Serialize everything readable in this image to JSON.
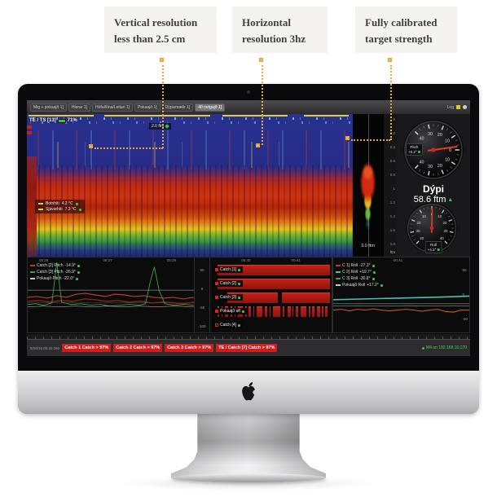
{
  "callouts": {
    "items": [
      {
        "text": "Vertical resolution less than 2.5 cm"
      },
      {
        "text": "Horizontal resolution 3hz"
      },
      {
        "text": "Fully calibrated target strength"
      }
    ]
  },
  "colors": {
    "accent_orange": "#e9a63c",
    "alert_red": "#cf1d1d",
    "ok_green": "#35c24a",
    "echo_blue": "#242a85"
  },
  "app": {
    "menu": {
      "tabs": [
        {
          "label": "Mig + pokaajð 1]"
        },
        {
          "label": "Hlerar 1]"
        },
        {
          "label": "Höfuðlína/Leitari 1]"
        },
        {
          "label": "Pokaajð 1]"
        },
        {
          "label": "Dýpismælir 1]"
        },
        {
          "label": "40 netgajð 1]",
          "active": true
        }
      ],
      "log_label": "Log"
    },
    "echogram": {
      "status_label": "TE / TS [13]",
      "battery_percent": "71%",
      "range_chip": "2.0 ftm",
      "temps": [
        {
          "label": "Botnhiti",
          "value": "4.2 °C"
        },
        {
          "label": "Sjávarhiti",
          "value": "7.3 °C"
        }
      ]
    },
    "strip": {
      "range_label": "3.0 ftm"
    },
    "scale": {
      "ticks": [
        "0",
        "0.2",
        "0.4",
        "0.6",
        "0.8",
        "1",
        "1.2",
        "1.4",
        "1.6",
        "1.8"
      ],
      "unit": "ftm"
    },
    "gauges": {
      "dial_numbers": [
        "40",
        "30",
        "20",
        "10",
        "0",
        "10",
        "20",
        "30",
        "40"
      ],
      "pitch": {
        "label": "Pitch",
        "value": "+0.2°",
        "rotation": 90,
        "needle_angle": 82
      },
      "roll": {
        "label": "Roll",
        "value": "+4.2°",
        "rotation": 0,
        "needle_angle": 1
      },
      "depth_label": "Dýpi",
      "depth_value": "58.6 ftm"
    },
    "bottom": {
      "left_chart": {
        "times": [
          "05:26",
          "05:27",
          "05:28"
        ],
        "legend": [
          {
            "label": "Catch [2] Pitch",
            "value": "-14.9°",
            "color": "#b3402e"
          },
          {
            "label": "Catch [3] Pitch",
            "value": "-26.9°",
            "color": "#3da23d"
          },
          {
            "label": "Pokaajð Pitch",
            "value": "-22.0°",
            "color": "#c9c9b8"
          }
        ],
        "y_ticks": [
          "50",
          "0",
          "-50",
          "-100"
        ],
        "series": {
          "red": "0,50 12,49 24,51 36,48 48,50 60,46 72,45 84,47 96,49 108,46 120,47 132,49 144,48 156,50 168,51 180,50 193,52 206,50",
          "darkred": "0,55 14,54 28,56 42,54 56,55 70,52 84,53 98,55 112,54 126,56 140,55 154,57 168,56 182,57 194,58 206,56",
          "green": "0,59 10,58 20,60 30,57 36,6 42,56 54,59 66,58 78,60 90,59 102,61 114,60 126,59 138,60 146,58 152,30 157,12 163,42 170,58 182,60 194,59 206,60",
          "gray": "0,62 20,61 40,62 60,61 80,62 100,61 120,62 140,61 160,62 180,61 206,62"
        }
      },
      "bars": {
        "times": [
          "00:40",
          "00:41"
        ],
        "rows": [
          {
            "label": "Catch [1]",
            "segments": [
              [
                5,
                95
              ]
            ]
          },
          {
            "label": "Catch [2]",
            "segments": [
              [
                5,
                95
              ]
            ]
          },
          {
            "label": "Catch [3]",
            "segments": [
              [
                13,
                43
              ],
              [
                59,
                41
              ]
            ]
          },
          {
            "label": "Pokaajð afl",
            "segments": [
              [
                5,
                1.5
              ],
              [
                8,
                1
              ],
              [
                11,
                3
              ],
              [
                16,
                1.5
              ],
              [
                19,
                1
              ],
              [
                22,
                4
              ],
              [
                28,
                1.5
              ],
              [
                31,
                2
              ],
              [
                35,
                1
              ],
              [
                38,
                5
              ],
              [
                45,
                2
              ],
              [
                49,
                1
              ],
              [
                52,
                6
              ],
              [
                60,
                1.5
              ],
              [
                64,
                3
              ],
              [
                68,
                1
              ],
              [
                71,
                2
              ],
              [
                75,
                5
              ],
              [
                82,
                1.5
              ],
              [
                85,
                2
              ],
              [
                89,
                3
              ],
              [
                93,
                1.5
              ],
              [
                96,
                2
              ]
            ]
          },
          {
            "label": "Catch [4]",
            "segments": []
          }
        ]
      },
      "right_chart": {
        "times": [
          "00:41"
        ],
        "legend": [
          {
            "label": "C 1] Roll",
            "value": "-27.3°",
            "color": "#b3402e"
          },
          {
            "label": "C 2] Roll",
            "value": "+19.7°",
            "color": "#45c4b4"
          },
          {
            "label": "C 3] Roll",
            "value": "-30.8°",
            "color": "#3da23d"
          },
          {
            "label": "Pokaajð Roll",
            "value": "+17.2°",
            "color": "#c9c9b8"
          }
        ],
        "y_ticks": [
          "50",
          "0",
          "-50"
        ],
        "series": {
          "teal": "0,53 20,52.5 40,52 60,51.5 80,51 100,50.5 120,50 140,49.5 169,48.5",
          "orange": "0,66 10,65 20,67 30,65 40,66 50,64.5 60,66 70,67 80,66 90,65 100,66 110,67.5 120,66 130,65 140,68 150,68.5 158,66 169,66",
          "gray": "0,61 30,60.5 60,61 90,60.5 120,61 150,60.5 169,61"
        }
      }
    },
    "statusbar": {
      "timestamp": "5/29/15 00:42.292",
      "alerts": [
        "Catch 1 Catch > 97%",
        "Catch 2 Catch > 97%",
        "Catch 3 Catch > 97%",
        "TE / Catch [7] Catch > 97%"
      ],
      "connection": "M4 on 192.168.10.170"
    }
  }
}
